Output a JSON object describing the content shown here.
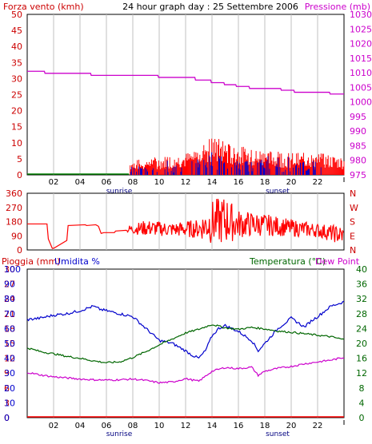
{
  "chart_data": [
    {
      "type": "line",
      "title": "24 hour graph day : 25 Settembre 2006",
      "left_label": "Forza vento (kmh)",
      "right_label": "Pressione (mb)",
      "y_left": {
        "ticks": [
          "0",
          "5",
          "10",
          "15",
          "20",
          "25",
          "30",
          "35",
          "40",
          "45",
          "50"
        ],
        "range": [
          0,
          50
        ]
      },
      "y_right": {
        "ticks": [
          "975",
          "980",
          "985",
          "990",
          "995",
          "1000",
          "1005",
          "1010",
          "1015",
          "1020",
          "1025",
          "1030"
        ],
        "range": [
          975,
          1030
        ]
      },
      "x_ticks": [
        "02",
        "04",
        "06",
        "08",
        "10",
        "12",
        "14",
        "16",
        "18",
        "20",
        "22"
      ],
      "x_range": [
        0,
        24
      ],
      "sunrise_label": "sunrise",
      "sunset_label": "sunset",
      "sunrise_hour": 7.9,
      "sunset_hour": 17.85,
      "series": [
        {
          "name": "Pressione (mb)",
          "color": "#cc00cc",
          "axis": "right",
          "x": [
            0,
            1.3,
            1.35,
            4.8,
            4.85,
            9.9,
            9.95,
            12.7,
            12.75,
            13.9,
            13.95,
            14.9,
            14.95,
            15.8,
            15.85,
            16.8,
            16.85,
            19.2,
            19.25,
            20.2,
            20.25,
            22.9,
            22.95,
            24
          ],
          "y": [
            1010.5,
            1010.5,
            1009.8,
            1009.8,
            1009.1,
            1009.1,
            1008.4,
            1008.4,
            1007.5,
            1007.5,
            1006.6,
            1006.6,
            1005.9,
            1005.9,
            1005.3,
            1005.3,
            1004.6,
            1004.6,
            1004.0,
            1004.0,
            1003.3,
            1003.3,
            1002.7,
            1002.7
          ]
        },
        {
          "name": "",
          "color": "#008000",
          "axis": "left",
          "x": [
            0,
            7.7
          ],
          "y": [
            0,
            0
          ]
        }
      ],
      "wind_gust": {
        "color": "#ff0000",
        "start_hour": 7.8,
        "end_hour": 24,
        "profile_hours": [
          8,
          10,
          12,
          13,
          14,
          15,
          16,
          17,
          18,
          20,
          22,
          24
        ],
        "profile_values": [
          4,
          5,
          6,
          8,
          11,
          9,
          8,
          7,
          7,
          6,
          6,
          5
        ]
      },
      "wind_avg": {
        "color": "#0000cc",
        "start_hour": 7.8,
        "end_hour": 22.3
      }
    },
    {
      "type": "line",
      "y_ticks": [
        "360",
        "270",
        "180",
        "90",
        "0"
      ],
      "y_range": [
        0,
        360
      ],
      "compass": [
        "N",
        "W",
        "S",
        "E",
        "N"
      ],
      "series": [
        {
          "name": "",
          "color": "#ff0000",
          "x": [
            0,
            1.5,
            1.6,
            1.9,
            2.0,
            3.0,
            3.1,
            4.4,
            4.5,
            5.2,
            5.4,
            5.6,
            5.8,
            6.6,
            6.7,
            7.5,
            7.6
          ],
          "y": [
            165,
            165,
            70,
            10,
            10,
            60,
            155,
            160,
            155,
            160,
            150,
            105,
            110,
            110,
            120,
            125,
            120
          ]
        }
      ],
      "noisy_hours": [
        7.6,
        24
      ],
      "noisy_profile_hours": [
        7.6,
        9,
        11,
        13,
        14,
        15,
        16,
        18,
        20,
        22,
        24
      ],
      "noisy_center": [
        130,
        140,
        130,
        135,
        175,
        190,
        165,
        160,
        140,
        125,
        90
      ],
      "noisy_amplitude": [
        25,
        50,
        45,
        60,
        140,
        160,
        90,
        70,
        55,
        45,
        60
      ]
    },
    {
      "type": "line",
      "left_label_1": "Pioggia (mm)",
      "left_label_2": "Umidita %",
      "right_label_1": "Temperatura (°C)",
      "right_label_2": "Dew Point",
      "rain_ticks": [
        "0",
        "3",
        "6",
        "9",
        "12",
        "15",
        "18",
        "21",
        "24",
        "27",
        "30"
      ],
      "humidity_ticks": [
        "0",
        "10",
        "20",
        "30",
        "40",
        "50",
        "60",
        "70",
        "80",
        "90",
        "100"
      ],
      "temp_ticks": [
        "0",
        "4",
        "8",
        "12",
        "16",
        "20",
        "24",
        "28",
        "32",
        "36",
        "40"
      ],
      "x_ticks": [
        "02",
        "04",
        "06",
        "08",
        "10",
        "12",
        "14",
        "16",
        "18",
        "20",
        "22"
      ],
      "x_range": [
        0,
        24
      ],
      "sunrise_label": "sunrise",
      "sunset_label": "sunset",
      "sunrise_hour": 7.9,
      "sunset_hour": 17.85,
      "series": [
        {
          "name": "Umidita %",
          "color": "#0000cc",
          "axis": "humidity",
          "x": [
            0,
            1,
            2,
            3,
            4,
            5,
            5.5,
            6,
            7,
            8,
            9,
            10,
            11,
            12,
            12.5,
            13,
            13.5,
            14,
            14.5,
            15,
            16,
            17,
            17.5,
            18,
            18.5,
            19,
            20,
            21,
            21.5,
            22,
            23,
            24
          ],
          "y": [
            66,
            67,
            69,
            70,
            72,
            75,
            73,
            72,
            70,
            68,
            60,
            52,
            50,
            45,
            42,
            40,
            45,
            55,
            60,
            62,
            58,
            52,
            45,
            50,
            55,
            60,
            67,
            61,
            65,
            68,
            75,
            78
          ]
        },
        {
          "name": "Temperatura (°C)",
          "color": "#006600",
          "axis": "temp",
          "x": [
            0,
            1,
            2,
            3,
            4,
            5,
            6,
            7,
            8,
            9,
            10,
            11,
            12,
            13,
            14,
            15,
            16,
            17,
            18,
            19,
            20,
            21,
            22,
            23,
            24
          ],
          "y": [
            18.8,
            17.8,
            17.2,
            16.5,
            16.0,
            15.3,
            14.8,
            15.0,
            16.2,
            17.8,
            19.6,
            21.2,
            22.8,
            23.8,
            25.1,
            24.2,
            23.8,
            24.3,
            23.9,
            23.3,
            23.0,
            22.6,
            22.2,
            21.8,
            21.0
          ]
        },
        {
          "name": "Dew Point",
          "color": "#cc00cc",
          "axis": "temp",
          "x": [
            0,
            1,
            2,
            3,
            4,
            5,
            6,
            7,
            8,
            9,
            10,
            11,
            12,
            13,
            14,
            15,
            16,
            17,
            17.5,
            18,
            19,
            20,
            21,
            22,
            23,
            24
          ],
          "y": [
            12.2,
            11.5,
            11.0,
            10.7,
            10.4,
            10.2,
            10.1,
            10.2,
            10.4,
            10.0,
            9.4,
            9.6,
            10.5,
            9.8,
            12.5,
            13.5,
            13.2,
            13.6,
            11.4,
            12.5,
            13.3,
            13.8,
            14.5,
            15.0,
            15.5,
            16.2
          ]
        },
        {
          "name": "Pioggia (mm)",
          "color": "#ff0000",
          "axis": "rain",
          "x": [
            0,
            24
          ],
          "y": [
            0,
            0
          ]
        }
      ]
    }
  ],
  "colors": {
    "left_axis": "#cc0000",
    "pressure": "#cc00cc",
    "humidity": "#0000cc",
    "temperature": "#006600",
    "dew_point": "#cc00cc",
    "text": "#000000",
    "grid": "#c0c0c0"
  }
}
